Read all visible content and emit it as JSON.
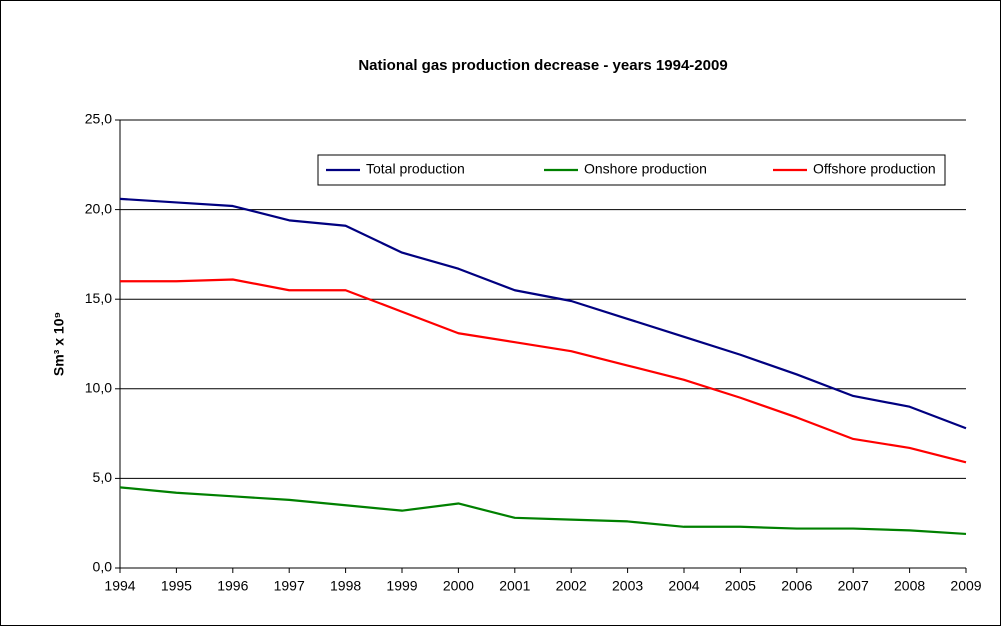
{
  "chart_data": {
    "type": "line",
    "title": "National gas production decrease - years 1994-2009",
    "ylabel": "Sm³ x 10⁹",
    "x": [
      1994,
      1995,
      1996,
      1997,
      1998,
      1999,
      2000,
      2001,
      2002,
      2003,
      2004,
      2005,
      2006,
      2007,
      2008,
      2009
    ],
    "series": [
      {
        "name": "Total production",
        "color": "#000080",
        "values": [
          20.6,
          20.4,
          20.2,
          19.4,
          19.1,
          17.6,
          16.7,
          15.5,
          14.9,
          13.9,
          12.9,
          11.9,
          10.8,
          9.6,
          9.0,
          7.8
        ]
      },
      {
        "name": "Onshore production",
        "color": "#008000",
        "values": [
          4.5,
          4.2,
          4.0,
          3.8,
          3.5,
          3.2,
          3.6,
          2.8,
          2.7,
          2.6,
          2.3,
          2.3,
          2.2,
          2.2,
          2.1,
          1.9
        ]
      },
      {
        "name": "Offshore production",
        "color": "#ff0000",
        "values": [
          16.0,
          16.0,
          16.1,
          15.5,
          15.5,
          14.3,
          13.1,
          12.6,
          12.1,
          11.3,
          10.5,
          9.5,
          8.4,
          7.2,
          6.7,
          5.9
        ]
      }
    ],
    "xlim": [
      1994,
      2009
    ],
    "xticks": [
      1994,
      1995,
      1996,
      1997,
      1998,
      1999,
      2000,
      2001,
      2002,
      2003,
      2004,
      2005,
      2006,
      2007,
      2008,
      2009
    ],
    "ylim": [
      0,
      25
    ],
    "yticks": [
      {
        "value": 0,
        "label": "0,0"
      },
      {
        "value": 5,
        "label": "5,0"
      },
      {
        "value": 10,
        "label": "10,0"
      },
      {
        "value": 15,
        "label": "15,0"
      },
      {
        "value": 20,
        "label": "20,0"
      },
      {
        "value": 25,
        "label": "25,0"
      }
    ],
    "grid": true,
    "legend": "top-right"
  }
}
